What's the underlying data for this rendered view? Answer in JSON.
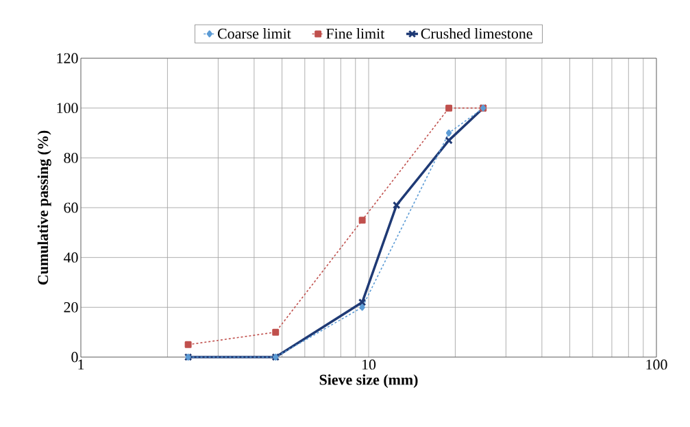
{
  "chart_data": {
    "type": "line",
    "xlabel": "Sieve size (mm)",
    "ylabel": "Cumulative passing (%)",
    "x": [
      2.36,
      4.75,
      9.5,
      12.5,
      19,
      25
    ],
    "series": [
      {
        "name": "Coarse limit",
        "color": "#5b9bd5",
        "marker": "diamond",
        "line_style": "dashed",
        "values": [
          0,
          0,
          20,
          null,
          90,
          100
        ]
      },
      {
        "name": "Fine limit",
        "color": "#c0504d",
        "marker": "square",
        "line_style": "dashed",
        "values": [
          5,
          10,
          55,
          null,
          100,
          100
        ]
      },
      {
        "name": "Crushed limestone",
        "color": "#1f3a75",
        "marker": "cross",
        "line_style": "solid",
        "values": [
          0,
          0,
          22,
          61,
          87,
          100
        ]
      }
    ],
    "log": "x",
    "xlim": [
      1,
      100
    ],
    "xticks": [
      1,
      10,
      100
    ],
    "ylim": [
      0,
      120
    ],
    "yticks": [
      0,
      20,
      40,
      60,
      80,
      100,
      120
    ],
    "grid": true,
    "legend": "top"
  }
}
